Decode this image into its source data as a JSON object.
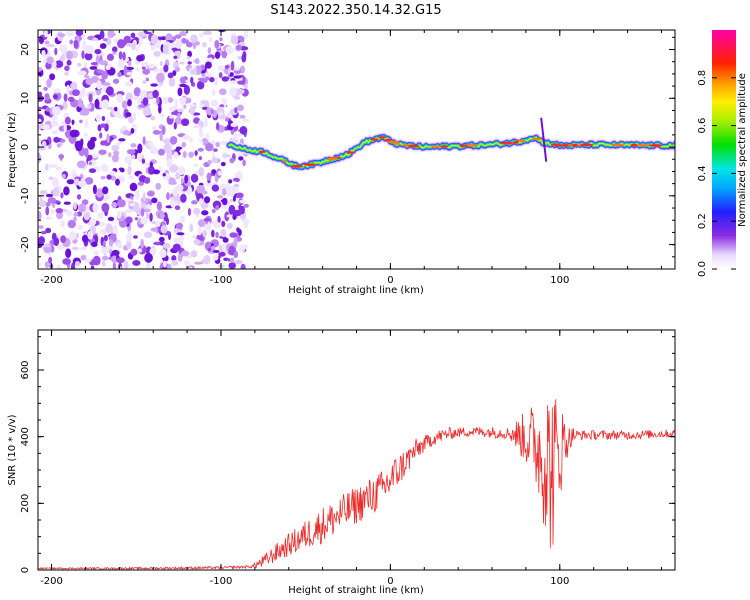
{
  "figure_title": "S143.2022.350.14.32.G15",
  "colors": {
    "snr_line": "#ee2b2b",
    "axis": "#000000",
    "noise": "#8a2be2"
  },
  "chart_data": [
    {
      "type": "heatmap",
      "title": "",
      "xlabel": "Height of straight line (km)",
      "ylabel": "Frequency (Hz)",
      "xlim": [
        -208,
        168
      ],
      "ylim": [
        -25,
        24
      ],
      "xticks": [
        -200,
        -100,
        0,
        100
      ],
      "yticks": [
        -20,
        -10,
        0,
        10,
        20
      ],
      "colorbar": {
        "label": "Normalized spectral amplitude",
        "range": [
          0,
          1
        ],
        "ticks": [
          "0.0",
          "0.2",
          "0.4",
          "0.6",
          "0.8"
        ],
        "colormap": "rainbow (white/violet at 0 through blue, cyan, green, yellow, red to magenta at 1)"
      },
      "noise_region_x": [
        -208,
        -85
      ],
      "signal_trace": {
        "description": "Dominant frequency ridge of the signal",
        "x": [
          -95,
          -85,
          -75,
          -65,
          -55,
          -45,
          -35,
          -25,
          -15,
          -5,
          5,
          20,
          40,
          60,
          75,
          85,
          90,
          100,
          120,
          140,
          168
        ],
        "y": [
          0.5,
          -0.5,
          -1,
          -2.5,
          -4,
          -3.5,
          -2.5,
          -1.5,
          1,
          2,
          0.5,
          0,
          0.2,
          0.5,
          1,
          2,
          1,
          0.3,
          0.5,
          0.4,
          0.3
        ]
      }
    },
    {
      "type": "line",
      "title": "",
      "xlabel": "Height of straight line (km)",
      "ylabel": "SNR (10 * v/v)",
      "xlim": [
        -208,
        168
      ],
      "ylim": [
        0,
        720
      ],
      "xticks": [
        -200,
        -100,
        0,
        100
      ],
      "yticks": [
        0,
        200,
        400,
        600
      ],
      "series": [
        {
          "envelope": {
            "x": [
              -208,
              -150,
              -100,
              -82,
              -75,
              -65,
              -55,
              -45,
              -35,
              -25,
              -15,
              -5,
              5,
              15,
              25,
              35,
              45,
              55,
              65,
              72,
              78,
              84,
              88,
              92,
              95,
              98,
              102,
              108,
              120,
              140,
              168
            ],
            "y": [
              5,
              5,
              7,
              10,
              25,
              60,
              90,
              120,
              150,
              180,
              210,
              240,
              300,
              360,
              395,
              410,
              415,
              415,
              412,
              410,
              400,
              390,
              360,
              330,
              300,
              330,
              380,
              405,
              405,
              405,
              410
            ]
          },
          "noise": {
            "x": [
              -208,
              -82,
              -75,
              -40,
              0,
              20,
              40,
              70,
              78,
              85,
              90,
              95,
              100,
              105,
              110,
              168
            ],
            "amplitude": [
              2,
              4,
              20,
              55,
              60,
              25,
              15,
              18,
              70,
              120,
              200,
              280,
              150,
              40,
              15,
              12
            ]
          }
        }
      ]
    }
  ]
}
